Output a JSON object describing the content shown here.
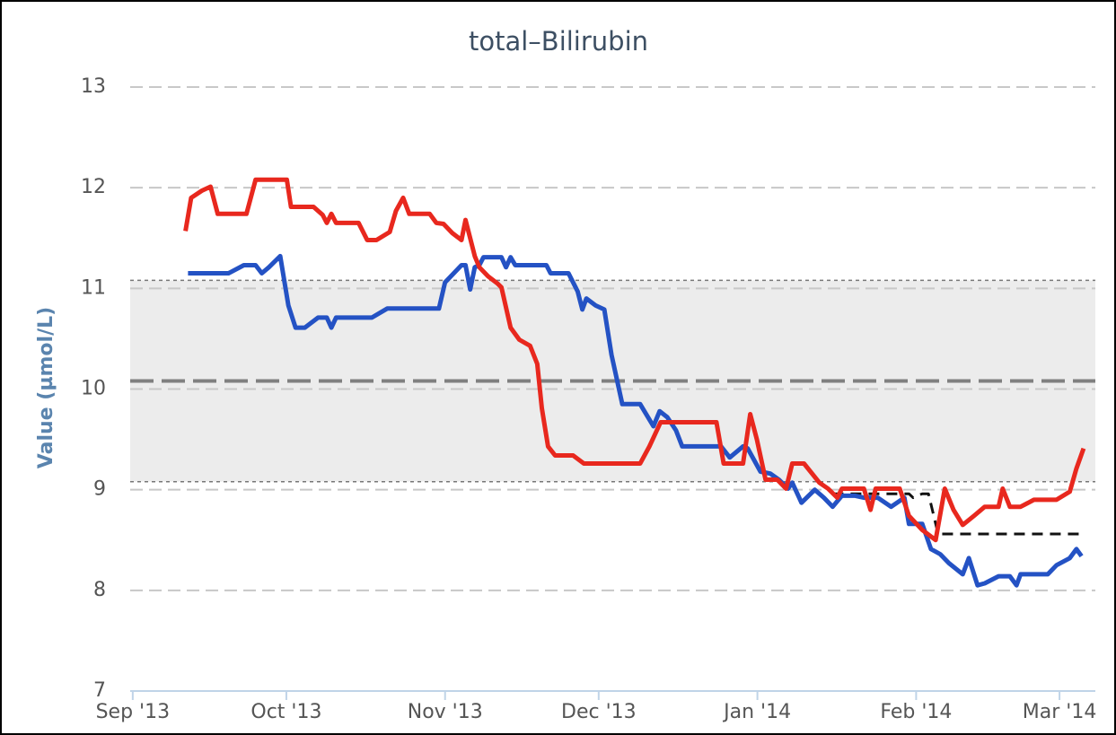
{
  "chart_data": {
    "type": "line",
    "title": "total–Bilirubin",
    "y_label": "Value (µmol/L)",
    "xlim": [
      -0.5,
      188
    ],
    "xticks": [
      {
        "value": 0,
        "label": "Sep '13"
      },
      {
        "value": 30,
        "label": "Oct '13"
      },
      {
        "value": 61,
        "label": "Nov '13"
      },
      {
        "value": 91,
        "label": "Dec '13"
      },
      {
        "value": 122,
        "label": "Jan '14"
      },
      {
        "value": 153,
        "label": "Feb '14"
      },
      {
        "value": 181,
        "label": "Mar '14"
      }
    ],
    "ylim": [
      7,
      13
    ],
    "yticks": [
      7,
      8,
      9,
      10,
      11,
      12,
      13
    ],
    "grid": true,
    "reference_band": {
      "low": 9.08,
      "high": 11.08,
      "mid": 10.08,
      "color": "#ececec"
    },
    "series": [
      {
        "color": "#2452c4",
        "dash": false,
        "x": [
          10.8,
          18.7,
          21.7,
          24.0,
          25.2,
          26.6,
          28.8,
          30.4,
          31.8,
          33.6,
          36.2,
          37.9,
          38.8,
          39.7,
          46.7,
          49.7,
          59.8,
          61.0,
          64.2,
          65.0,
          65.9,
          66.8,
          67.7,
          68.5,
          72.0,
          72.9,
          73.8,
          74.7,
          80.8,
          81.6,
          85.1,
          86.9,
          87.8,
          88.6,
          90.4,
          92.1,
          93.5,
          95.6,
          99.1,
          101.7,
          102.9,
          104.4,
          106.1,
          107.3,
          114.9,
          116.6,
          119.2,
          120.1,
          122.6,
          124.5,
          126.2,
          128.0,
          128.8,
          130.6,
          133.2,
          135.0,
          136.7,
          138.5,
          141.1,
          142.8,
          145.5,
          148.1,
          150.7,
          151.6,
          154.2,
          155.9,
          157.7,
          159.4,
          162.1,
          163.3,
          165.0,
          166.4,
          169.1,
          171.3,
          172.6,
          173.4,
          178.7,
          180.4,
          183.0,
          184.3,
          185.3
        ],
        "values": [
          11.15,
          11.15,
          11.23,
          11.23,
          11.15,
          11.21,
          11.32,
          10.83,
          10.61,
          10.61,
          10.71,
          10.71,
          10.61,
          10.71,
          10.71,
          10.8,
          10.8,
          11.06,
          11.23,
          11.23,
          10.99,
          11.21,
          11.23,
          11.31,
          11.31,
          11.21,
          11.31,
          11.23,
          11.23,
          11.15,
          11.15,
          10.97,
          10.79,
          10.9,
          10.83,
          10.79,
          10.34,
          9.85,
          9.85,
          9.63,
          9.78,
          9.72,
          9.59,
          9.43,
          9.43,
          9.32,
          9.43,
          9.41,
          9.18,
          9.16,
          9.1,
          9.01,
          9.07,
          8.87,
          9.0,
          8.92,
          8.83,
          8.94,
          8.94,
          8.92,
          8.92,
          8.83,
          8.92,
          8.66,
          8.66,
          8.41,
          8.36,
          8.27,
          8.16,
          8.32,
          8.05,
          8.07,
          8.14,
          8.14,
          8.05,
          8.16,
          8.16,
          8.25,
          8.32,
          8.41,
          8.34
        ]
      },
      {
        "color": "#e8281e",
        "dash": false,
        "x": [
          10.3,
          11.4,
          13.5,
          15.2,
          16.6,
          22.2,
          24.0,
          30.1,
          30.9,
          35.3,
          37.1,
          37.9,
          38.8,
          39.7,
          44.1,
          45.8,
          47.6,
          50.2,
          51.4,
          52.8,
          54.0,
          58.0,
          59.3,
          60.7,
          62.4,
          64.2,
          65.0,
          66.8,
          67.7,
          69.4,
          71.2,
          72.0,
          73.8,
          75.5,
          77.6,
          79.0,
          79.9,
          81.1,
          82.5,
          86.0,
          88.1,
          99.1,
          100.9,
          103.1,
          114.0,
          115.4,
          119.2,
          120.6,
          121.9,
          123.6,
          125.9,
          127.6,
          128.8,
          131.1,
          134.1,
          135.8,
          137.6,
          138.5,
          142.8,
          144.1,
          145.1,
          149.8,
          151.6,
          154.2,
          156.8,
          158.6,
          160.3,
          162.1,
          164.3,
          166.4,
          169.1,
          169.9,
          171.3,
          173.4,
          176.0,
          180.4,
          183.0,
          184.3,
          185.7
        ],
        "values": [
          11.57,
          11.9,
          11.97,
          12.01,
          11.74,
          11.74,
          12.08,
          12.08,
          11.81,
          11.81,
          11.73,
          11.65,
          11.74,
          11.65,
          11.65,
          11.48,
          11.48,
          11.56,
          11.77,
          11.9,
          11.74,
          11.74,
          11.65,
          11.64,
          11.55,
          11.48,
          11.68,
          11.32,
          11.21,
          11.12,
          11.05,
          11.01,
          10.61,
          10.49,
          10.43,
          10.25,
          9.81,
          9.43,
          9.34,
          9.34,
          9.26,
          9.26,
          9.43,
          9.67,
          9.67,
          9.26,
          9.26,
          9.75,
          9.5,
          9.1,
          9.1,
          9.01,
          9.26,
          9.26,
          9.07,
          9.01,
          8.92,
          9.01,
          9.01,
          8.8,
          9.01,
          9.01,
          8.74,
          8.6,
          8.5,
          9.01,
          8.8,
          8.65,
          8.74,
          8.83,
          8.83,
          9.01,
          8.83,
          8.83,
          8.9,
          8.9,
          8.98,
          9.21,
          9.41
        ]
      },
      {
        "color": "#111111",
        "dash": true,
        "x": [
          136.7,
          151.6,
          152.4,
          154.2,
          155.4,
          157.3,
          185.7
        ],
        "values": [
          8.96,
          8.96,
          8.92,
          8.96,
          8.96,
          8.56,
          8.56
        ]
      }
    ]
  }
}
